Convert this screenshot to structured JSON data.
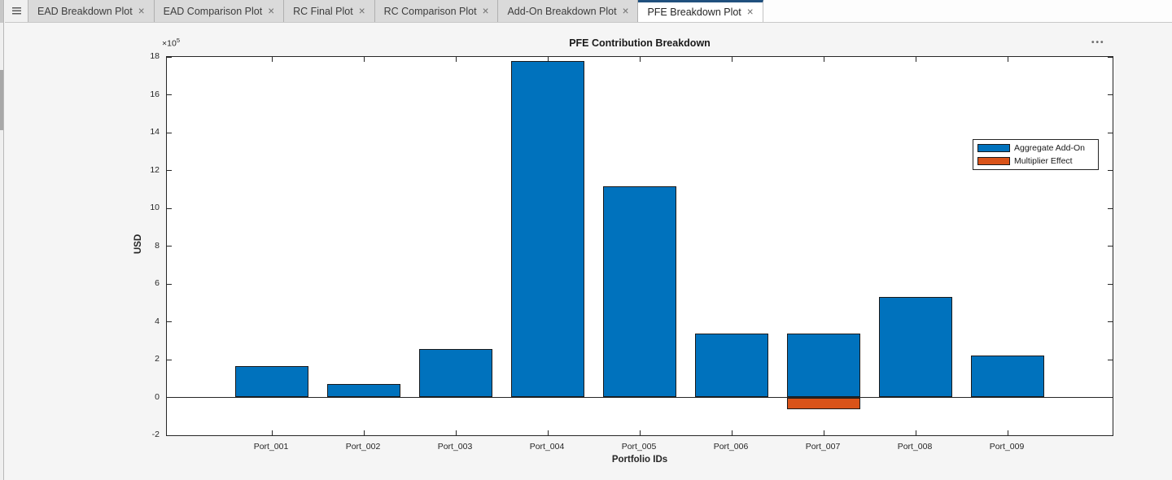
{
  "tabs": [
    {
      "label": "EAD Breakdown Plot",
      "active": false
    },
    {
      "label": "EAD Comparison Plot",
      "active": false
    },
    {
      "label": "RC Final Plot",
      "active": false
    },
    {
      "label": "RC Comparison Plot",
      "active": false
    },
    {
      "label": "Add-On Breakdown Plot",
      "active": false
    },
    {
      "label": "PFE Breakdown Plot",
      "active": true
    }
  ],
  "icons": {
    "tab_close": "×",
    "tab_list": "hamburger-lines",
    "axes_menu": "•••"
  },
  "chart_data": {
    "type": "bar",
    "title": "PFE Contribution Breakdown",
    "xlabel": "Portfolio IDs",
    "ylabel": "USD",
    "exponent_base": "×10",
    "exponent_power": "5",
    "unit_note": "y values in multiples of 1e5 USD",
    "categories": [
      "Port_001",
      "Port_002",
      "Port_003",
      "Port_004",
      "Port_005",
      "Port_006",
      "Port_007",
      "Port_008",
      "Port_009"
    ],
    "series": [
      {
        "name": "Aggregate Add-On",
        "color": "#0072BD",
        "values": [
          1.66,
          0.72,
          2.58,
          17.8,
          11.18,
          3.36,
          3.36,
          5.32,
          2.22
        ]
      },
      {
        "name": "Multiplier Effect",
        "color": "#D95319",
        "values": [
          0,
          0,
          0,
          0,
          0,
          0,
          -0.63,
          0,
          0
        ]
      }
    ],
    "ylim": [
      -2,
      18
    ],
    "ytick_step": 2,
    "grid": false,
    "legend_position": "inside-top-right",
    "tick_direction": "in",
    "box": true
  },
  "colors": {
    "figure_background": "#f5f5f5",
    "plot_background": "#ffffff",
    "axis": "#262626",
    "bar_edge": "#1a1a1a",
    "active_tab_accent": "#20507e",
    "inactive_tab": "#dadada"
  }
}
